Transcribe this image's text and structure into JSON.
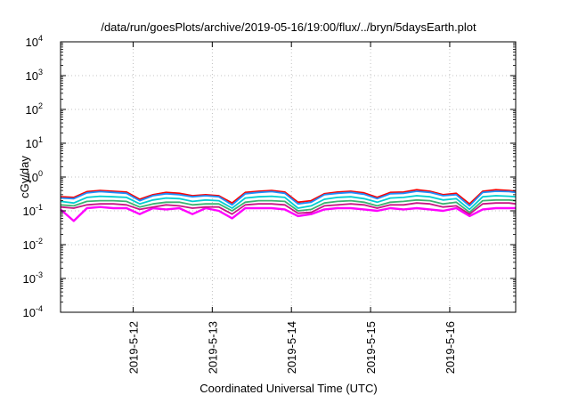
{
  "chart_data": {
    "type": "line",
    "title": "/data/run/goesPlots/archive/2019-05-16/19:00/flux/../bryn/5daysEarth.plot",
    "xlabel": "Coordinated Universal Time (UTC)",
    "ylabel": "cGy/day",
    "yscale": "log",
    "ylim": [
      0.0001,
      10000
    ],
    "xlim": [
      "2019-05-11T02:00",
      "2019-05-16T20:00"
    ],
    "grid": true,
    "y_ticks": [
      {
        "value": 0.0001,
        "base": "10",
        "exp": "-4"
      },
      {
        "value": 0.001,
        "base": "10",
        "exp": "-3"
      },
      {
        "value": 0.01,
        "base": "10",
        "exp": "-2"
      },
      {
        "value": 0.1,
        "base": "10",
        "exp": "-1"
      },
      {
        "value": 1,
        "base": "10",
        "exp": "0"
      },
      {
        "value": 10,
        "base": "10",
        "exp": "1"
      },
      {
        "value": 100,
        "base": "10",
        "exp": "2"
      },
      {
        "value": 1000,
        "base": "10",
        "exp": "3"
      },
      {
        "value": 10000,
        "base": "10",
        "exp": "4"
      }
    ],
    "x_ticks": [
      {
        "value": "2019-05-12T00:00",
        "label": "2019-5-12"
      },
      {
        "value": "2019-05-13T00:00",
        "label": "2019-5-13"
      },
      {
        "value": "2019-05-14T00:00",
        "label": "2019-5-14"
      },
      {
        "value": "2019-05-15T00:00",
        "label": "2019-5-15"
      },
      {
        "value": "2019-05-16T00:00",
        "label": "2019-5-16"
      }
    ],
    "series": [
      {
        "color": "#ff00ff",
        "x": [
          "2019-05-11T02:00",
          "2019-05-11T06:00",
          "2019-05-11T10:00",
          "2019-05-11T14:00",
          "2019-05-11T18:00",
          "2019-05-11T22:00",
          "2019-05-12T02:00",
          "2019-05-12T06:00",
          "2019-05-12T10:00",
          "2019-05-12T14:00",
          "2019-05-12T18:00",
          "2019-05-12T22:00",
          "2019-05-13T02:00",
          "2019-05-13T06:00",
          "2019-05-13T10:00",
          "2019-05-13T14:00",
          "2019-05-13T18:00",
          "2019-05-13T22:00",
          "2019-05-14T02:00",
          "2019-05-14T06:00",
          "2019-05-14T10:00",
          "2019-05-14T14:00",
          "2019-05-14T18:00",
          "2019-05-14T22:00",
          "2019-05-15T02:00",
          "2019-05-15T06:00",
          "2019-05-15T10:00",
          "2019-05-15T14:00",
          "2019-05-15T18:00",
          "2019-05-15T22:00",
          "2019-05-16T02:00",
          "2019-05-16T06:00",
          "2019-05-16T10:00",
          "2019-05-16T14:00",
          "2019-05-16T18:00",
          "2019-05-16T20:00"
        ],
        "values": [
          0.11,
          0.05,
          0.12,
          0.13,
          0.12,
          0.12,
          0.08,
          0.12,
          0.11,
          0.12,
          0.08,
          0.12,
          0.1,
          0.06,
          0.12,
          0.12,
          0.12,
          0.11,
          0.07,
          0.08,
          0.11,
          0.12,
          0.12,
          0.11,
          0.1,
          0.12,
          0.11,
          0.12,
          0.11,
          0.1,
          0.12,
          0.07,
          0.11,
          0.12,
          0.12,
          0.12
        ]
      },
      {
        "color": "#ff0000",
        "x": [
          "2019-05-11T02:00",
          "2019-05-11T06:00",
          "2019-05-11T10:00",
          "2019-05-11T14:00",
          "2019-05-11T18:00",
          "2019-05-11T22:00",
          "2019-05-12T02:00",
          "2019-05-12T06:00",
          "2019-05-12T10:00",
          "2019-05-12T14:00",
          "2019-05-12T18:00",
          "2019-05-12T22:00",
          "2019-05-13T02:00",
          "2019-05-13T06:00",
          "2019-05-13T10:00",
          "2019-05-13T14:00",
          "2019-05-13T18:00",
          "2019-05-13T22:00",
          "2019-05-14T02:00",
          "2019-05-14T06:00",
          "2019-05-14T10:00",
          "2019-05-14T14:00",
          "2019-05-14T18:00",
          "2019-05-14T22:00",
          "2019-05-15T02:00",
          "2019-05-15T06:00",
          "2019-05-15T10:00",
          "2019-05-15T14:00",
          "2019-05-15T18:00",
          "2019-05-15T22:00",
          "2019-05-16T02:00",
          "2019-05-16T06:00",
          "2019-05-16T10:00",
          "2019-05-16T14:00",
          "2019-05-16T18:00",
          "2019-05-16T20:00"
        ],
        "values": [
          0.26,
          0.25,
          0.37,
          0.4,
          0.38,
          0.36,
          0.22,
          0.3,
          0.35,
          0.33,
          0.28,
          0.3,
          0.28,
          0.17,
          0.35,
          0.38,
          0.4,
          0.36,
          0.18,
          0.2,
          0.32,
          0.36,
          0.38,
          0.34,
          0.25,
          0.35,
          0.36,
          0.42,
          0.38,
          0.3,
          0.33,
          0.16,
          0.38,
          0.42,
          0.4,
          0.38
        ]
      },
      {
        "color": "#1e90ff",
        "x": [
          "2019-05-11T02:00",
          "2019-05-11T06:00",
          "2019-05-11T10:00",
          "2019-05-11T14:00",
          "2019-05-11T18:00",
          "2019-05-11T22:00",
          "2019-05-12T02:00",
          "2019-05-12T06:00",
          "2019-05-12T10:00",
          "2019-05-12T14:00",
          "2019-05-12T18:00",
          "2019-05-12T22:00",
          "2019-05-13T02:00",
          "2019-05-13T06:00",
          "2019-05-13T10:00",
          "2019-05-13T14:00",
          "2019-05-13T18:00",
          "2019-05-13T22:00",
          "2019-05-14T02:00",
          "2019-05-14T06:00",
          "2019-05-14T10:00",
          "2019-05-14T14:00",
          "2019-05-14T18:00",
          "2019-05-14T22:00",
          "2019-05-15T02:00",
          "2019-05-15T06:00",
          "2019-05-15T10:00",
          "2019-05-15T14:00",
          "2019-05-15T18:00",
          "2019-05-15T22:00",
          "2019-05-16T02:00",
          "2019-05-16T06:00",
          "2019-05-16T10:00",
          "2019-05-16T14:00",
          "2019-05-16T18:00",
          "2019-05-16T20:00"
        ],
        "values": [
          0.24,
          0.23,
          0.34,
          0.37,
          0.35,
          0.33,
          0.2,
          0.28,
          0.32,
          0.3,
          0.26,
          0.28,
          0.26,
          0.15,
          0.32,
          0.35,
          0.37,
          0.33,
          0.16,
          0.18,
          0.3,
          0.33,
          0.35,
          0.31,
          0.23,
          0.32,
          0.33,
          0.38,
          0.35,
          0.28,
          0.3,
          0.14,
          0.35,
          0.38,
          0.37,
          0.35
        ]
      },
      {
        "color": "#00ced1",
        "x": [
          "2019-05-11T02:00",
          "2019-05-11T06:00",
          "2019-05-11T10:00",
          "2019-05-11T14:00",
          "2019-05-11T18:00",
          "2019-05-11T22:00",
          "2019-05-12T02:00",
          "2019-05-12T06:00",
          "2019-05-12T10:00",
          "2019-05-12T14:00",
          "2019-05-12T18:00",
          "2019-05-12T22:00",
          "2019-05-13T02:00",
          "2019-05-13T06:00",
          "2019-05-13T10:00",
          "2019-05-13T14:00",
          "2019-05-13T18:00",
          "2019-05-13T22:00",
          "2019-05-14T02:00",
          "2019-05-14T06:00",
          "2019-05-14T10:00",
          "2019-05-14T14:00",
          "2019-05-14T18:00",
          "2019-05-14T22:00",
          "2019-05-15T02:00",
          "2019-05-15T06:00",
          "2019-05-15T10:00",
          "2019-05-15T14:00",
          "2019-05-15T18:00",
          "2019-05-15T22:00",
          "2019-05-16T02:00",
          "2019-05-16T06:00",
          "2019-05-16T10:00",
          "2019-05-16T14:00",
          "2019-05-16T18:00",
          "2019-05-16T20:00"
        ],
        "values": [
          0.19,
          0.17,
          0.25,
          0.27,
          0.26,
          0.25,
          0.16,
          0.21,
          0.24,
          0.23,
          0.19,
          0.21,
          0.2,
          0.12,
          0.24,
          0.26,
          0.27,
          0.25,
          0.12,
          0.14,
          0.22,
          0.25,
          0.26,
          0.23,
          0.18,
          0.24,
          0.25,
          0.28,
          0.26,
          0.21,
          0.23,
          0.11,
          0.26,
          0.28,
          0.27,
          0.26
        ]
      },
      {
        "color": "#3cb371",
        "x": [
          "2019-05-11T02:00",
          "2019-05-11T06:00",
          "2019-05-11T10:00",
          "2019-05-11T14:00",
          "2019-05-11T18:00",
          "2019-05-11T22:00",
          "2019-05-12T02:00",
          "2019-05-12T06:00",
          "2019-05-12T10:00",
          "2019-05-12T14:00",
          "2019-05-12T18:00",
          "2019-05-12T22:00",
          "2019-05-13T02:00",
          "2019-05-13T06:00",
          "2019-05-13T10:00",
          "2019-05-13T14:00",
          "2019-05-13T18:00",
          "2019-05-13T22:00",
          "2019-05-14T02:00",
          "2019-05-14T06:00",
          "2019-05-14T10:00",
          "2019-05-14T14:00",
          "2019-05-14T18:00",
          "2019-05-14T22:00",
          "2019-05-15T02:00",
          "2019-05-15T06:00",
          "2019-05-15T10:00",
          "2019-05-15T14:00",
          "2019-05-15T18:00",
          "2019-05-15T22:00",
          "2019-05-16T02:00",
          "2019-05-16T06:00",
          "2019-05-16T10:00",
          "2019-05-16T14:00",
          "2019-05-16T18:00",
          "2019-05-16T20:00"
        ],
        "values": [
          0.15,
          0.14,
          0.19,
          0.2,
          0.2,
          0.19,
          0.13,
          0.16,
          0.18,
          0.18,
          0.15,
          0.16,
          0.16,
          0.1,
          0.18,
          0.2,
          0.2,
          0.19,
          0.1,
          0.11,
          0.17,
          0.19,
          0.2,
          0.18,
          0.14,
          0.18,
          0.19,
          0.21,
          0.2,
          0.16,
          0.18,
          0.09,
          0.2,
          0.21,
          0.21,
          0.2
        ]
      },
      {
        "color": "#c71585",
        "x": [
          "2019-05-11T02:00",
          "2019-05-11T06:00",
          "2019-05-11T10:00",
          "2019-05-11T14:00",
          "2019-05-11T18:00",
          "2019-05-11T22:00",
          "2019-05-12T02:00",
          "2019-05-12T06:00",
          "2019-05-12T10:00",
          "2019-05-12T14:00",
          "2019-05-12T18:00",
          "2019-05-12T22:00",
          "2019-05-13T02:00",
          "2019-05-13T06:00",
          "2019-05-13T10:00",
          "2019-05-13T14:00",
          "2019-05-13T18:00",
          "2019-05-13T22:00",
          "2019-05-14T02:00",
          "2019-05-14T06:00",
          "2019-05-14T10:00",
          "2019-05-14T14:00",
          "2019-05-14T18:00",
          "2019-05-14T22:00",
          "2019-05-15T02:00",
          "2019-05-15T06:00",
          "2019-05-15T10:00",
          "2019-05-15T14:00",
          "2019-05-15T18:00",
          "2019-05-15T22:00",
          "2019-05-16T02:00",
          "2019-05-16T06:00",
          "2019-05-16T10:00",
          "2019-05-16T14:00",
          "2019-05-16T18:00",
          "2019-05-16T20:00"
        ],
        "values": [
          0.13,
          0.12,
          0.15,
          0.16,
          0.16,
          0.15,
          0.11,
          0.13,
          0.15,
          0.14,
          0.12,
          0.13,
          0.13,
          0.08,
          0.15,
          0.16,
          0.16,
          0.15,
          0.085,
          0.09,
          0.14,
          0.15,
          0.16,
          0.15,
          0.12,
          0.15,
          0.15,
          0.17,
          0.16,
          0.13,
          0.14,
          0.08,
          0.16,
          0.17,
          0.17,
          0.16
        ]
      }
    ]
  }
}
